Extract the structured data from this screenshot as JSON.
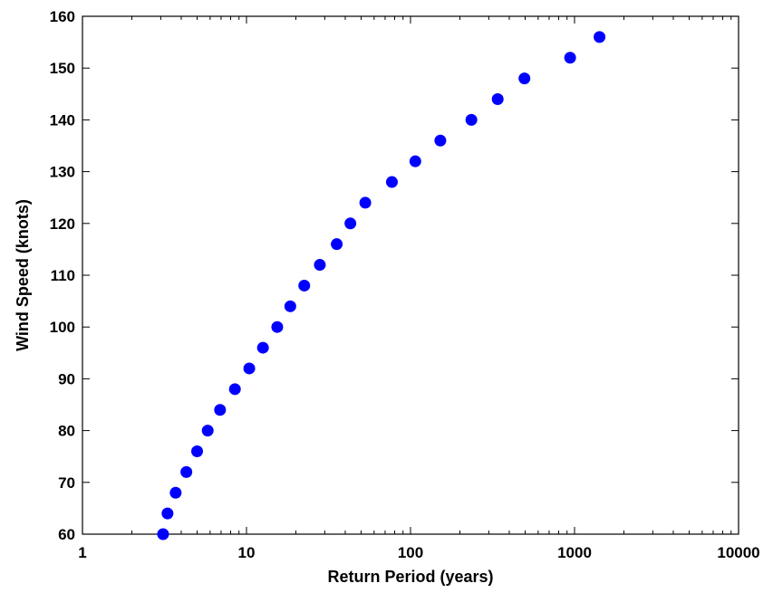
{
  "chart_data": {
    "type": "scatter",
    "title": "",
    "xlabel": "Return Period (years)",
    "ylabel": "Wind Speed (knots)",
    "xscale": "log",
    "xlim": [
      1,
      10000
    ],
    "ylim": [
      60,
      160
    ],
    "xticks": [
      1,
      10,
      100,
      1000,
      10000
    ],
    "xtick_labels": [
      "1",
      "10",
      "100",
      "1000",
      "10000"
    ],
    "yticks": [
      60,
      70,
      80,
      90,
      100,
      110,
      120,
      130,
      140,
      150,
      160
    ],
    "ytick_labels": [
      "60",
      "70",
      "80",
      "90",
      "100",
      "110",
      "120",
      "130",
      "140",
      "150",
      "160"
    ],
    "grid": false,
    "marker_color": "#0000ff",
    "series": [
      {
        "x": [
          3.1,
          3.3,
          3.7,
          4.3,
          5.0,
          5.8,
          6.9,
          8.5,
          10.4,
          12.6,
          15.4,
          18.5,
          22.5,
          28.0,
          35.5,
          43.0,
          53.0,
          77.0,
          107.0,
          152.0,
          235.0,
          340.0,
          495.0,
          940.0,
          1420.0
        ],
        "y": [
          60,
          64,
          68,
          72,
          76,
          80,
          84,
          88,
          92,
          96,
          100,
          104,
          108,
          112,
          116,
          120,
          124,
          128,
          132,
          136,
          140,
          144,
          148,
          152,
          156
        ]
      }
    ]
  }
}
